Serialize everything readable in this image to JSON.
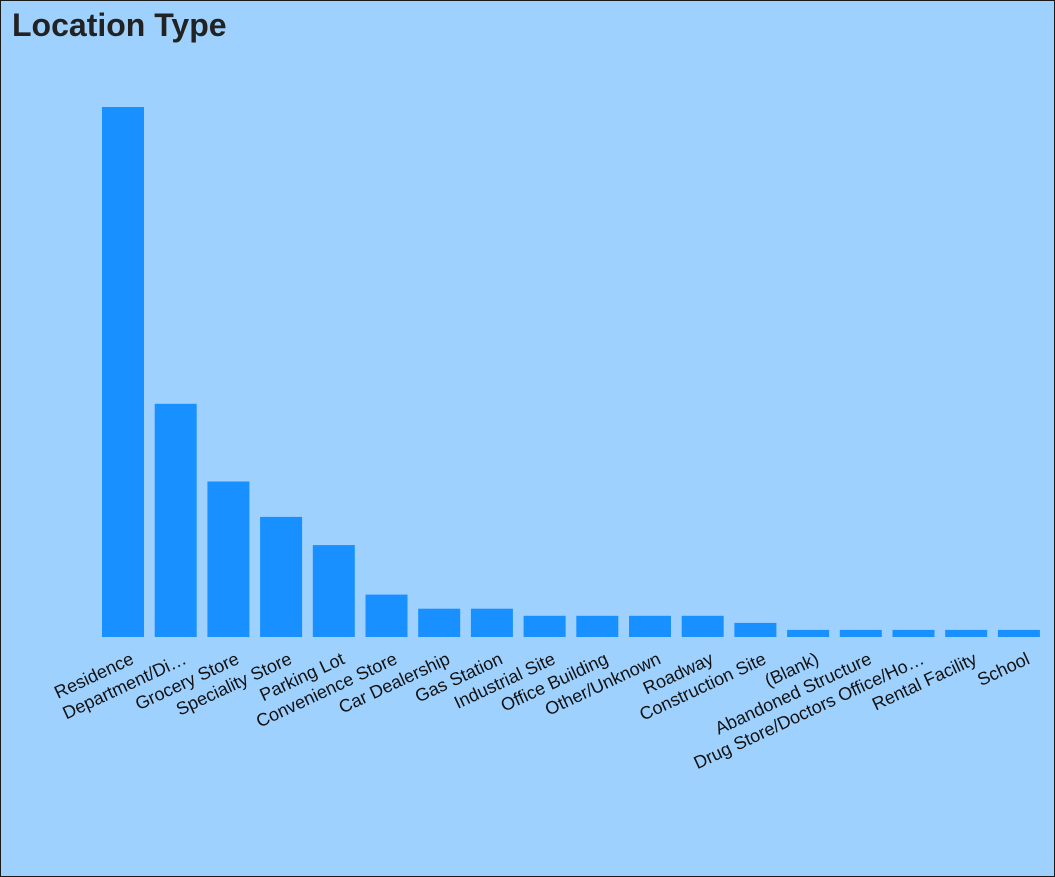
{
  "title": "Location Type",
  "colors": {
    "background": "#9fd1ff",
    "bar": "#1890ff",
    "text": "#111111"
  },
  "chart_data": {
    "type": "bar",
    "title": "Location Type",
    "xlabel": "",
    "ylabel": "",
    "grid": false,
    "legend": "none",
    "ylim": [
      0,
      76
    ],
    "categories": [
      "Residence",
      "Department/Di…",
      "Grocery Store",
      "Speciality Store",
      "Parking Lot",
      "Convenience Store",
      "Car Dealership",
      "Gas Station",
      "Industrial Site",
      "Office Building",
      "Other/Unknown",
      "Roadway",
      "Construction Site",
      "(Blank)",
      "Abandoned Structure",
      "Drug Store/Doctors Office/Ho…",
      "Rental Facility",
      "School"
    ],
    "values": [
      75,
      33,
      22,
      17,
      13,
      6,
      4,
      4,
      3,
      3,
      3,
      3,
      2,
      1,
      1,
      1,
      1,
      1
    ]
  }
}
